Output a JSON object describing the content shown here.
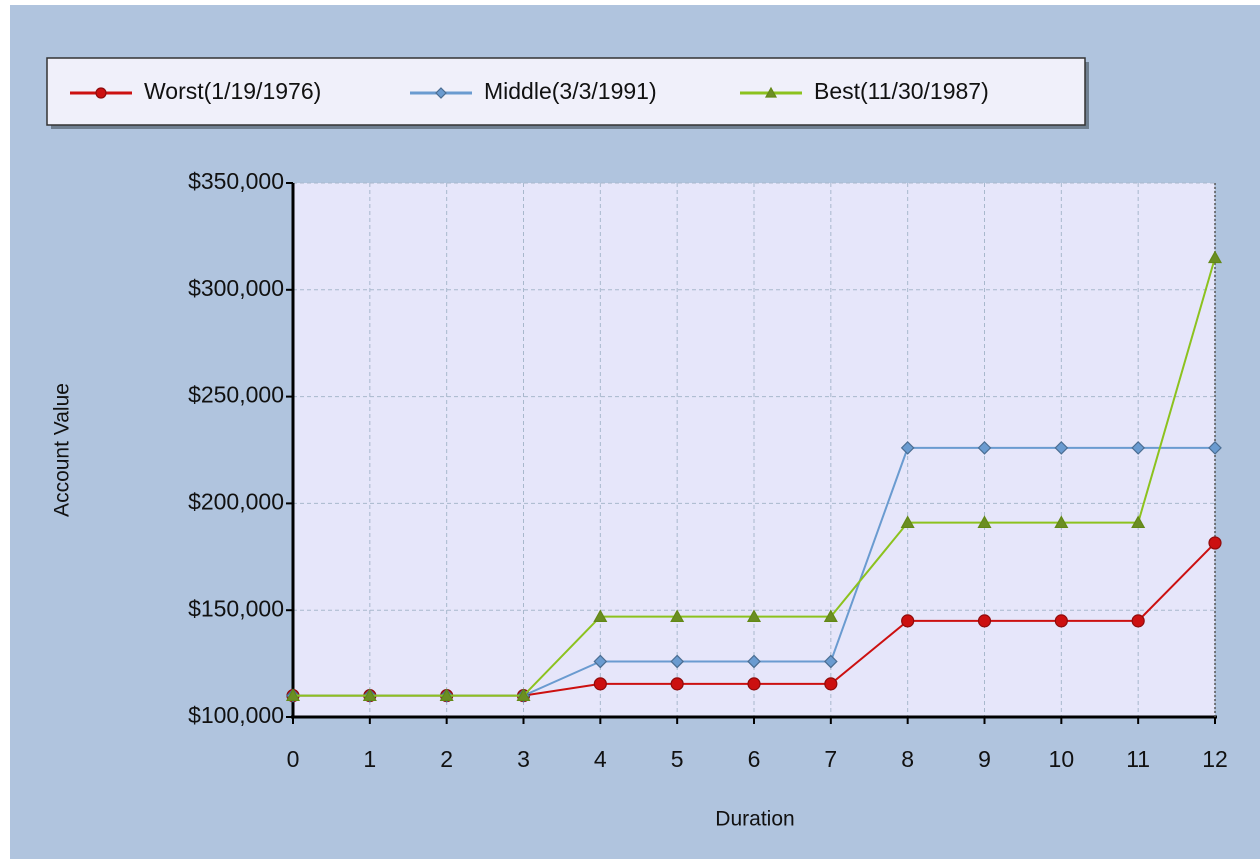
{
  "chart_data": {
    "type": "line",
    "xlabel": "Duration",
    "ylabel": "Account Value",
    "x": [
      0,
      1,
      2,
      3,
      4,
      5,
      6,
      7,
      8,
      9,
      10,
      11,
      12
    ],
    "xlim": [
      0,
      12
    ],
    "xticks": [
      0,
      1,
      2,
      3,
      4,
      5,
      6,
      7,
      8,
      9,
      10,
      11,
      12
    ],
    "ylim": [
      100000,
      350000
    ],
    "yticks": [
      {
        "value": 100000,
        "label": "$100,000"
      },
      {
        "value": 150000,
        "label": "$150,000"
      },
      {
        "value": 200000,
        "label": "$200,000"
      },
      {
        "value": 250000,
        "label": "$250,000"
      },
      {
        "value": 300000,
        "label": "$300,000"
      },
      {
        "value": 350000,
        "label": "$350,000"
      }
    ],
    "grid": true,
    "series": [
      {
        "name": "Worst(1/19/1976)",
        "color": "#cc1010",
        "marker": "circle",
        "values": [
          110000,
          110000,
          110000,
          110000,
          115500,
          115500,
          115500,
          115500,
          145000,
          145000,
          145000,
          145000,
          181500
        ]
      },
      {
        "name": "Middle(3/3/1991)",
        "color": "#6a9bd0",
        "marker": "diamond",
        "values": [
          110000,
          110000,
          110000,
          110000,
          126000,
          126000,
          126000,
          126000,
          226000,
          226000,
          226000,
          226000,
          226000
        ]
      },
      {
        "name": "Best(11/30/1987)",
        "color": "#8cc21e",
        "marker": "triangle",
        "values": [
          110000,
          110000,
          110000,
          110000,
          147000,
          147000,
          147000,
          147000,
          191000,
          191000,
          191000,
          191000,
          315000
        ]
      }
    ]
  }
}
